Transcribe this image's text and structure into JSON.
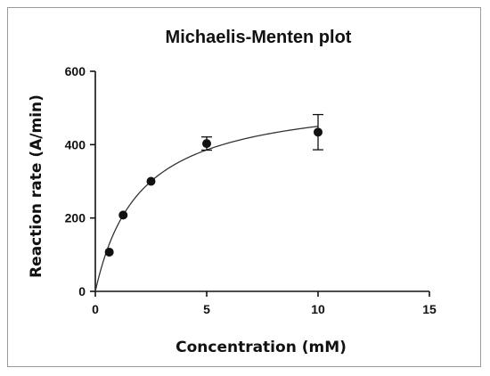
{
  "chart_data": {
    "type": "scatter",
    "title": "Michaelis-Menten plot",
    "xlabel": "Concentration (mM)",
    "ylabel": "Reaction rate (A/min)",
    "xlim": [
      0,
      15
    ],
    "ylim": [
      0,
      600
    ],
    "xticks": [
      0,
      5,
      10,
      15
    ],
    "yticks": [
      0,
      200,
      400,
      600
    ],
    "grid": false,
    "series": [
      {
        "x": [
          0.625,
          1.25,
          2.5,
          5,
          10
        ],
        "y": [
          107,
          208,
          300,
          403,
          434
        ],
        "error": [
          0,
          0,
          0,
          18,
          48
        ]
      }
    ],
    "fit": {
      "model": "Michaelis-Menten",
      "vmax": 540,
      "km": 2.0
    },
    "colors": {
      "marker": "#111111",
      "curve": "#333333",
      "axis": "#111111"
    }
  }
}
